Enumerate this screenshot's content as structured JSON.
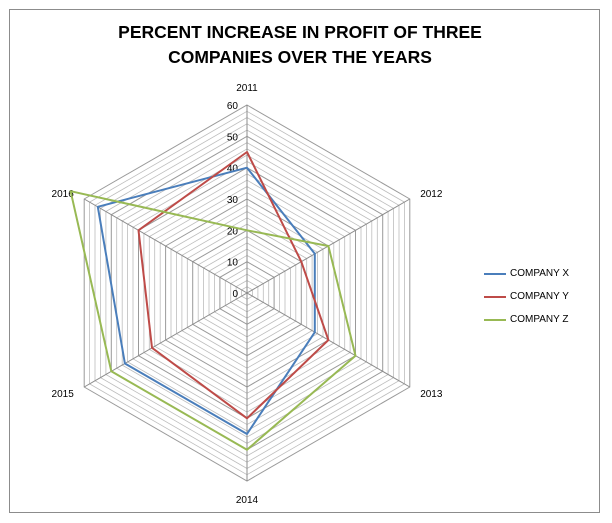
{
  "chart_data": {
    "type": "radar",
    "title_lines": [
      "PERCENT INCREASE  IN PROFIT OF THREE",
      "COMPANIES OVER THE YEARS"
    ],
    "categories": [
      "2011",
      "2012",
      "2013",
      "2014",
      "2015",
      "2016"
    ],
    "rlim": [
      0,
      60
    ],
    "ticks": [
      "0",
      "10",
      "20",
      "30",
      "40",
      "50",
      "60"
    ],
    "minor_gridlines": true,
    "legend_position": "right",
    "series": [
      {
        "name": "COMPANY X",
        "color": "#4a7ebb",
        "values": [
          40,
          25,
          25,
          45,
          45,
          55
        ]
      },
      {
        "name": "COMPANY Y",
        "color": "#be4b48",
        "values": [
          45,
          20,
          30,
          40,
          35,
          40
        ]
      },
      {
        "name": "COMPANY Z",
        "color": "#98b954",
        "values": [
          20,
          30,
          40,
          50,
          50,
          65
        ]
      }
    ]
  }
}
